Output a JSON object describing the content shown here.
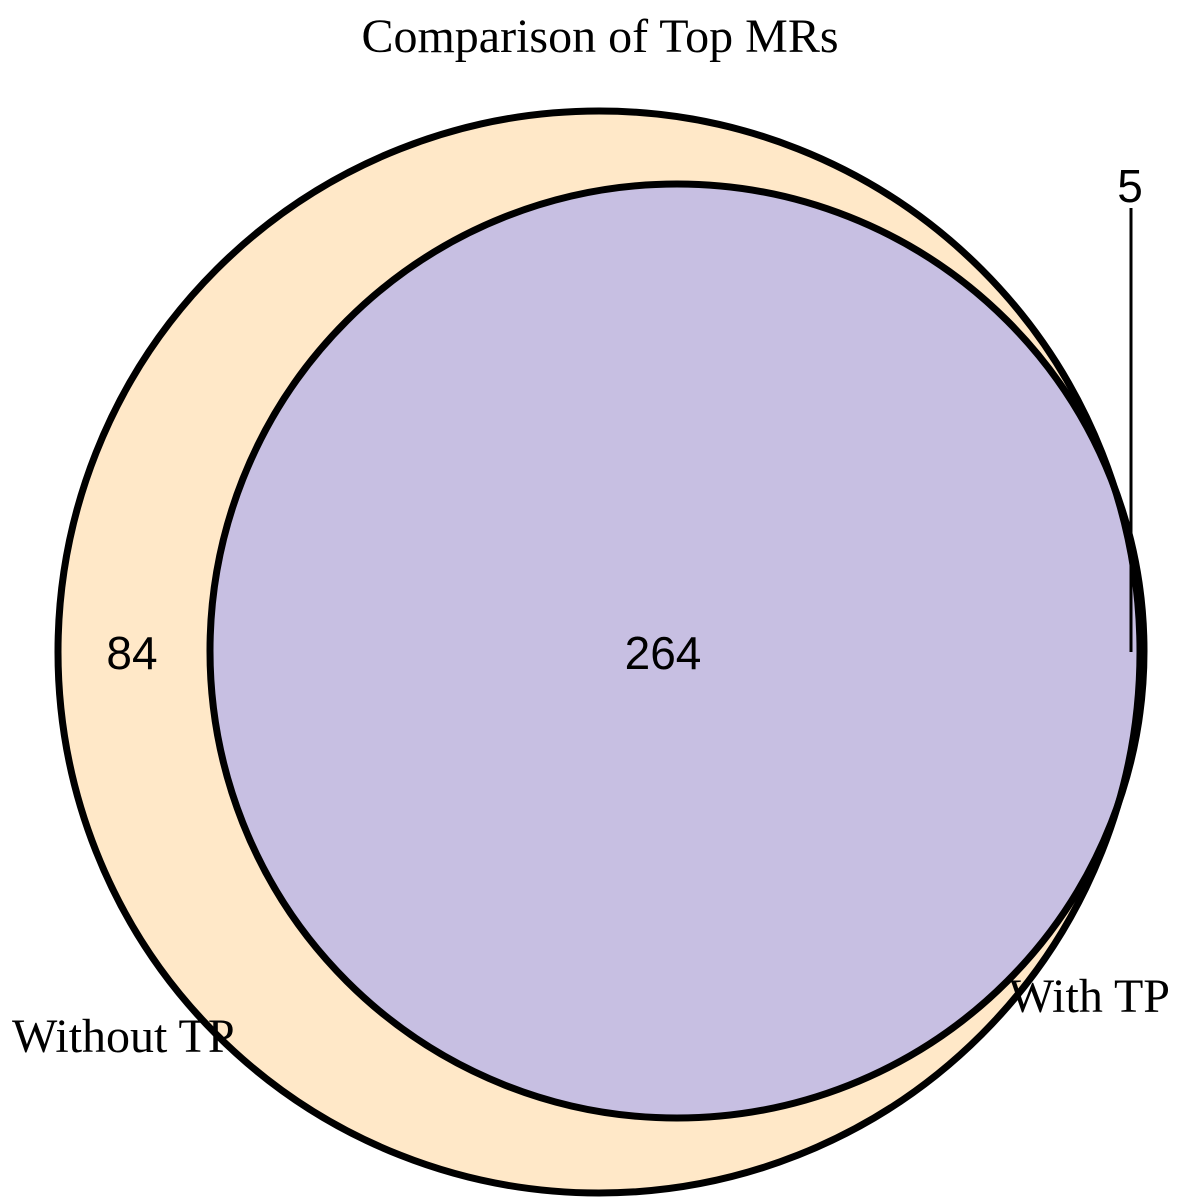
{
  "title": "Comparison of Top MRs",
  "sets": [
    {
      "name": "Without TP",
      "only_count": "84",
      "color": "#FFE8C8"
    },
    {
      "name": "With TP",
      "only_count": "5",
      "color": "#C8C8FA"
    }
  ],
  "intersection": {
    "count": "264",
    "color": "#C7BFE2"
  },
  "outline_color": "#000000"
}
